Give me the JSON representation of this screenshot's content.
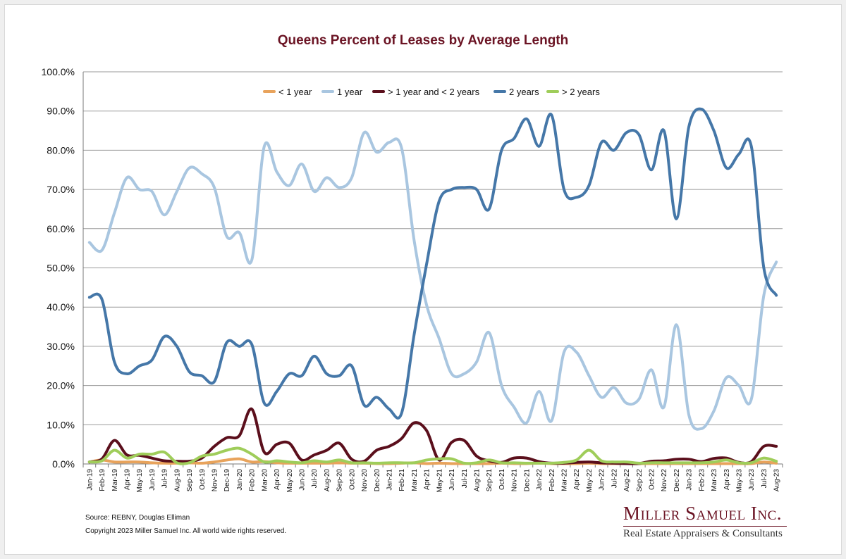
{
  "chart_data": {
    "type": "line",
    "title": "Queens Percent of Leases by Average Length",
    "ylim": [
      0,
      100
    ],
    "yticks": [
      "0.0%",
      "10.0%",
      "20.0%",
      "30.0%",
      "40.0%",
      "50.0%",
      "60.0%",
      "70.0%",
      "80.0%",
      "90.0%",
      "100.0%"
    ],
    "categories": [
      "Jan-19",
      "Feb-19",
      "Mar-19",
      "Apr-19",
      "May-19",
      "Jun-19",
      "Jul-19",
      "Aug-19",
      "Sep-19",
      "Oct-19",
      "Nov-19",
      "Dec-19",
      "Jan-20",
      "Feb-20",
      "Mar-20",
      "Apr-20",
      "May-20",
      "Jun-20",
      "Jul-20",
      "Aug-20",
      "Sep-20",
      "Oct-20",
      "Nov-20",
      "Dec-20",
      "Jan-21",
      "Feb-21",
      "Mar-21",
      "Apr-21",
      "May-21",
      "Jun-21",
      "Jul-21",
      "Aug-21",
      "Sep-21",
      "Oct-21",
      "Nov-21",
      "Dec-21",
      "Jan-22",
      "Feb-22",
      "Mar-22",
      "Apr-22",
      "May-22",
      "Jun-22",
      "Jul-22",
      "Aug-22",
      "Sep-22",
      "Oct-22",
      "Nov-22",
      "Dec-22",
      "Jan-23",
      "Feb-23",
      "Mar-23",
      "Apr-23",
      "May-23",
      "Jun-23",
      "Jul-23",
      "Aug-23"
    ],
    "series": [
      {
        "name": "< 1 year",
        "color": "#e8a35c",
        "values": [
          0.5,
          1,
          0.5,
          0.5,
          0.5,
          0.3,
          0.2,
          0.2,
          0.3,
          0.2,
          0.5,
          1.0,
          1.3,
          0.5,
          0.6,
          0.3,
          0.2,
          0.2,
          0.2,
          0.2,
          0.3,
          0.2,
          0.2,
          0.1,
          0.1,
          0.2,
          0.3,
          0.1,
          0.2,
          0.1,
          0.1,
          0.1,
          0.1,
          0.2,
          0.1,
          0.1,
          0.2,
          0.1,
          0.1,
          0.1,
          0.2,
          0.1,
          0.1,
          0.1,
          0.1,
          0.1,
          0.1,
          0.1,
          0.1,
          0.1,
          0.1,
          0.1,
          0.1,
          0.1,
          0.5,
          0.2
        ]
      },
      {
        "name": "1 year",
        "color": "#a9c6e0",
        "values": [
          56.5,
          54.5,
          64,
          73,
          70,
          69.5,
          63.5,
          69.5,
          75.5,
          74,
          70.5,
          58,
          59,
          52,
          81,
          74.5,
          71,
          76.5,
          69.5,
          73,
          70.5,
          73,
          84.5,
          79.5,
          82,
          80.5,
          57,
          40.5,
          32,
          23,
          23,
          26,
          33.5,
          20,
          14.5,
          10.5,
          18.5,
          11,
          28.5,
          28.5,
          22.5,
          17,
          19.5,
          15.5,
          16.5,
          24,
          14.5,
          35.5,
          12.5,
          9,
          13.5,
          22,
          20,
          16.5,
          43,
          51.5
        ]
      },
      {
        "name": "> 1 year and < 2 years",
        "color": "#5b0f1c",
        "values": [
          0.5,
          1.3,
          6,
          2.3,
          2.2,
          1.5,
          0.8,
          0.7,
          0.7,
          1.5,
          4.5,
          6.7,
          7.2,
          14,
          3,
          5,
          5.3,
          1,
          2.3,
          3.5,
          5.3,
          1.2,
          0.7,
          3.5,
          4.5,
          6.5,
          10.5,
          8.5,
          1,
          5.5,
          6,
          2,
          0.8,
          0.4,
          1.5,
          1.5,
          0.6,
          0.2,
          0.2,
          0.4,
          0.5,
          0.3,
          0.2,
          0.1,
          0.1,
          0.7,
          0.8,
          1.2,
          1.2,
          0.6,
          1.4,
          1.5,
          0.4,
          0.6,
          4.5,
          4.5
        ]
      },
      {
        "name": "2 years",
        "color": "#4577a8",
        "values": [
          42.5,
          42,
          26,
          23,
          25,
          26.5,
          32.5,
          30,
          23.5,
          22.5,
          21,
          31,
          30,
          30.5,
          15.5,
          18.5,
          23,
          22.5,
          27.5,
          23,
          22.5,
          25,
          15,
          17,
          14,
          13,
          33,
          51,
          67,
          70,
          70.5,
          70,
          65,
          80,
          83,
          88,
          81,
          89,
          70,
          68,
          71,
          82,
          80,
          84.5,
          84,
          75,
          85,
          62.5,
          86,
          90.5,
          85,
          75.5,
          79,
          81,
          50,
          43
        ]
      },
      {
        "name": "> 2 years",
        "color": "#9fcd5a",
        "values": [
          0.5,
          0.8,
          3.5,
          1.5,
          2.5,
          2.5,
          3,
          0.3,
          0.3,
          2,
          2.5,
          3.5,
          4,
          2.5,
          0.5,
          0.8,
          0.5,
          0.3,
          0.8,
          0.5,
          1,
          0.3,
          0.3,
          0.2,
          0.3,
          0.3,
          0.3,
          1,
          1.3,
          1.3,
          0.2,
          0.3,
          1,
          0.3,
          0.3,
          0.2,
          0.2,
          0.2,
          0.4,
          1,
          3.5,
          0.8,
          0.5,
          0.5,
          0.2,
          0.3,
          0.3,
          0.3,
          0.3,
          0.3,
          0.5,
          1,
          0.3,
          0.3,
          1.5,
          0.7
        ]
      }
    ],
    "legend": "top-center, inside plot",
    "grid": true
  },
  "footer": {
    "source": "Source: REBNY, Douglas Elliman",
    "copyright": "Copyright 2023 Miller Samuel Inc.  All world wide rights reserved."
  },
  "brand": {
    "name": "Miller Samuel Inc.",
    "tagline": "Real Estate Appraisers & Consultants"
  }
}
